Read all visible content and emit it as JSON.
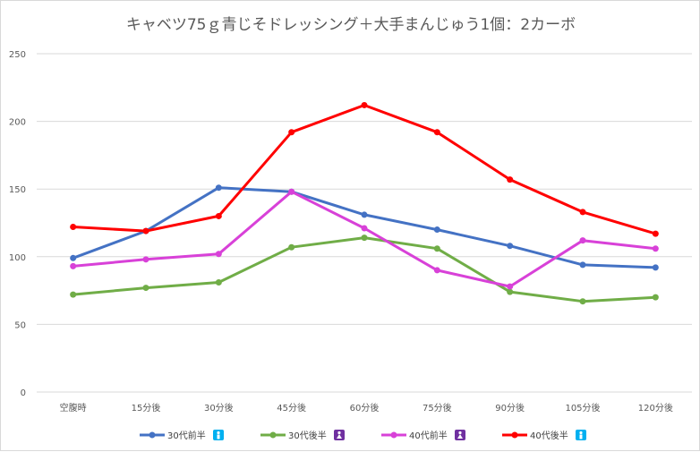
{
  "chart_data": {
    "type": "line",
    "title": "キャベツ75ｇ青じそドレッシング＋大手まんじゅう1個：2カーボ",
    "categories": [
      "空腹時",
      "15分後",
      "30分後",
      "45分後",
      "60分後",
      "75分後",
      "90分後",
      "105分後",
      "120分後"
    ],
    "ylim": [
      0,
      250
    ],
    "yticks": [
      0,
      50,
      100,
      150,
      200,
      250
    ],
    "grid": true,
    "legend_position": "bottom",
    "series": [
      {
        "name": "30代前半",
        "color": "#4472C4",
        "icon": "male-icon",
        "icon_color": "#00B0F0",
        "values": [
          99,
          119,
          151,
          148,
          131,
          120,
          108,
          94,
          92
        ]
      },
      {
        "name": "30代後半",
        "color": "#70AD47",
        "icon": "female-icon",
        "icon_color": "#7030A0",
        "values": [
          72,
          77,
          81,
          107,
          114,
          106,
          74,
          67,
          70
        ]
      },
      {
        "name": "40代前半",
        "color": "#D841D8",
        "icon": "female-icon",
        "icon_color": "#7030A0",
        "values": [
          93,
          98,
          102,
          148,
          121,
          90,
          78,
          112,
          106
        ]
      },
      {
        "name": "40代後半",
        "color": "#FF0000",
        "icon": "male-icon",
        "icon_color": "#00B0F0",
        "values": [
          122,
          119,
          130,
          192,
          212,
          192,
          157,
          133,
          117
        ]
      }
    ]
  }
}
